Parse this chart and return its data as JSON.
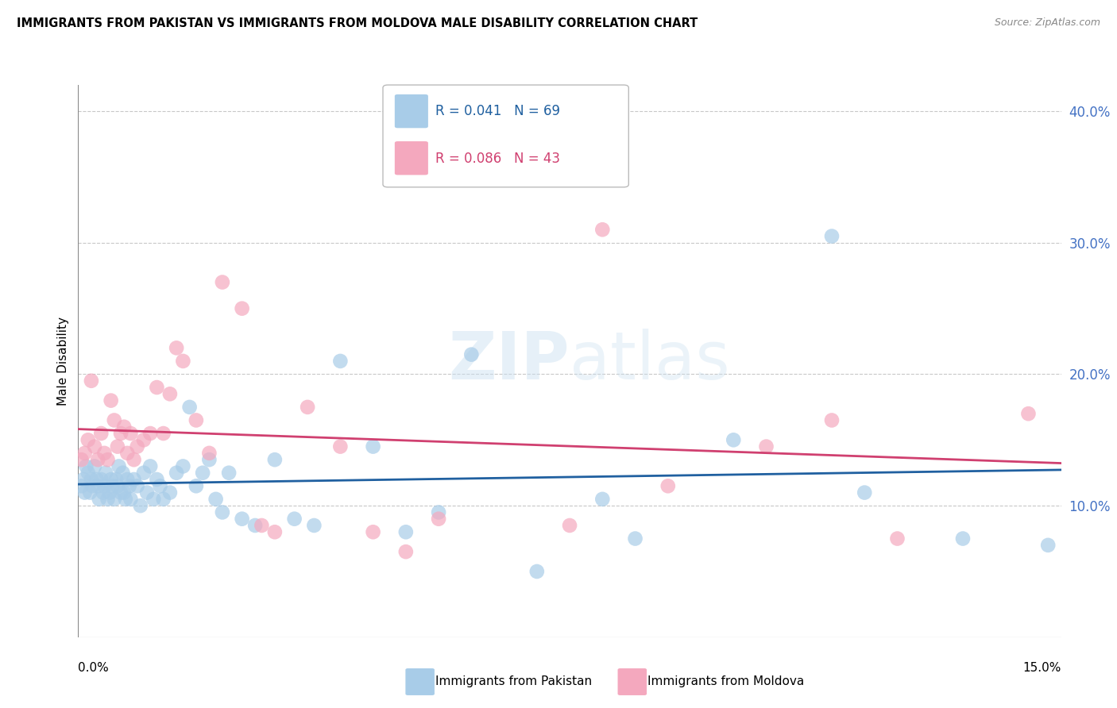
{
  "title": "IMMIGRANTS FROM PAKISTAN VS IMMIGRANTS FROM MOLDOVA MALE DISABILITY CORRELATION CHART",
  "source": "Source: ZipAtlas.com",
  "ylabel": "Male Disability",
  "xlim": [
    0.0,
    15.0
  ],
  "ylim": [
    0.0,
    42.0
  ],
  "ytick_values": [
    10.0,
    20.0,
    30.0,
    40.0
  ],
  "xtick_values": [
    0.0,
    2.5,
    5.0,
    7.5,
    10.0,
    12.5,
    15.0
  ],
  "pakistan_color": "#a8cce8",
  "moldova_color": "#f4a8be",
  "pakistan_line_color": "#2060a0",
  "moldova_line_color": "#d04070",
  "pakistan_R": 0.041,
  "pakistan_N": 69,
  "moldova_R": 0.086,
  "moldova_N": 43,
  "pakistan_x": [
    0.05,
    0.08,
    0.1,
    0.12,
    0.15,
    0.18,
    0.2,
    0.22,
    0.25,
    0.28,
    0.3,
    0.32,
    0.35,
    0.38,
    0.4,
    0.42,
    0.45,
    0.48,
    0.5,
    0.52,
    0.55,
    0.58,
    0.6,
    0.62,
    0.65,
    0.68,
    0.7,
    0.72,
    0.75,
    0.78,
    0.8,
    0.85,
    0.9,
    0.95,
    1.0,
    1.05,
    1.1,
    1.15,
    1.2,
    1.25,
    1.3,
    1.4,
    1.5,
    1.6,
    1.7,
    1.8,
    1.9,
    2.0,
    2.1,
    2.2,
    2.3,
    2.5,
    2.7,
    3.0,
    3.3,
    3.6,
    4.0,
    4.5,
    5.0,
    5.5,
    6.0,
    7.0,
    8.0,
    8.5,
    10.0,
    11.5,
    12.0,
    13.5,
    14.8
  ],
  "pakistan_y": [
    11.5,
    12.0,
    11.0,
    13.0,
    12.5,
    11.0,
    12.0,
    11.5,
    13.0,
    12.0,
    11.5,
    10.5,
    12.0,
    11.0,
    11.5,
    12.5,
    10.5,
    11.0,
    12.0,
    11.5,
    10.5,
    12.0,
    11.5,
    13.0,
    11.0,
    12.5,
    11.0,
    10.5,
    12.0,
    11.5,
    10.5,
    12.0,
    11.5,
    10.0,
    12.5,
    11.0,
    13.0,
    10.5,
    12.0,
    11.5,
    10.5,
    11.0,
    12.5,
    13.0,
    17.5,
    11.5,
    12.5,
    13.5,
    10.5,
    9.5,
    12.5,
    9.0,
    8.5,
    13.5,
    9.0,
    8.5,
    21.0,
    14.5,
    8.0,
    9.5,
    21.5,
    5.0,
    10.5,
    7.5,
    15.0,
    30.5,
    11.0,
    7.5,
    7.0
  ],
  "moldova_x": [
    0.05,
    0.1,
    0.15,
    0.2,
    0.25,
    0.3,
    0.35,
    0.4,
    0.45,
    0.5,
    0.55,
    0.6,
    0.65,
    0.7,
    0.75,
    0.8,
    0.85,
    0.9,
    1.0,
    1.1,
    1.2,
    1.3,
    1.4,
    1.5,
    1.6,
    1.8,
    2.0,
    2.2,
    2.5,
    2.8,
    3.0,
    3.5,
    4.0,
    4.5,
    5.0,
    5.5,
    7.5,
    8.0,
    9.0,
    10.5,
    11.5,
    12.5,
    14.5
  ],
  "moldova_y": [
    13.5,
    14.0,
    15.0,
    19.5,
    14.5,
    13.5,
    15.5,
    14.0,
    13.5,
    18.0,
    16.5,
    14.5,
    15.5,
    16.0,
    14.0,
    15.5,
    13.5,
    14.5,
    15.0,
    15.5,
    19.0,
    15.5,
    18.5,
    22.0,
    21.0,
    16.5,
    14.0,
    27.0,
    25.0,
    8.5,
    8.0,
    17.5,
    14.5,
    8.0,
    6.5,
    9.0,
    8.5,
    31.0,
    11.5,
    14.5,
    16.5,
    7.5,
    17.0
  ]
}
